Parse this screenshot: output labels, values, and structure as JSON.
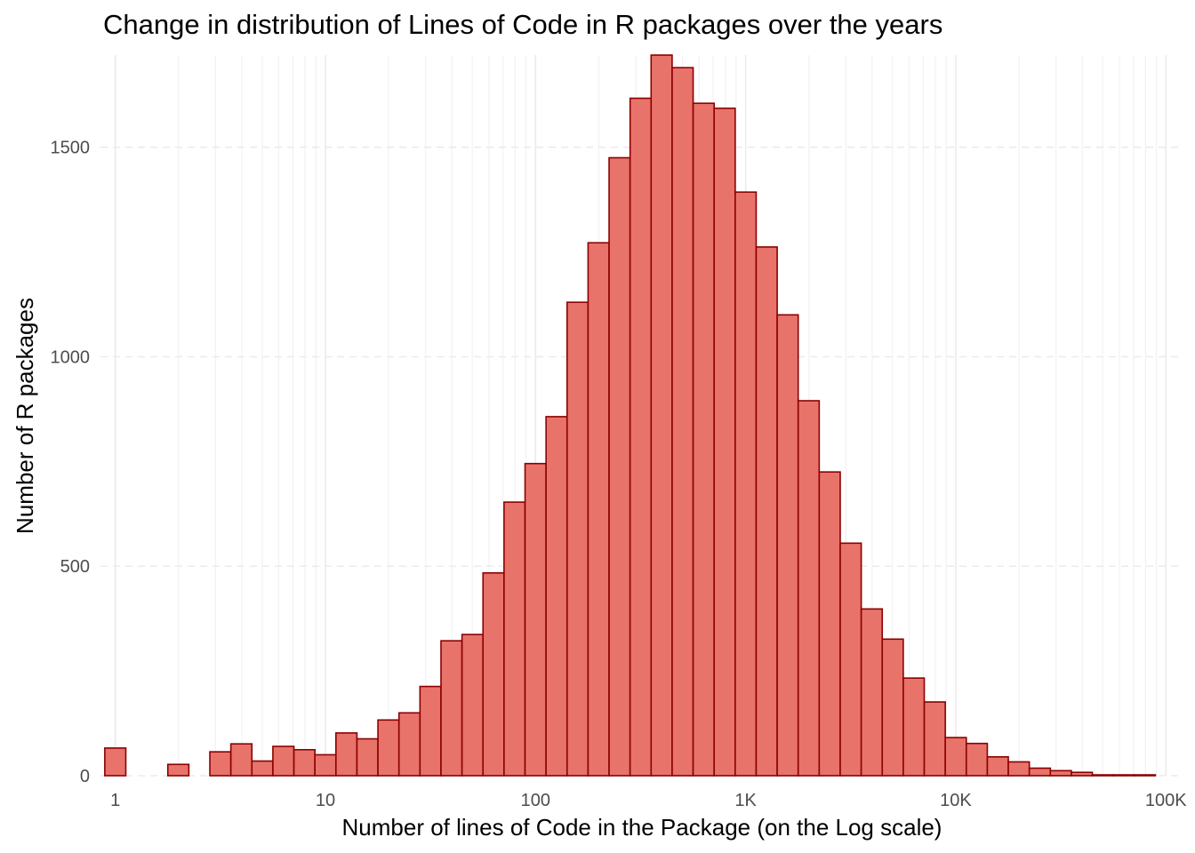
{
  "chart_data": {
    "type": "bar",
    "title": "Change in distribution of Lines of Code in R packages over the years",
    "xlabel": "Number of lines of Code in the Package (on the Log scale)",
    "ylabel": "Number of R packages",
    "x_scale": "log10",
    "xlim": [
      0.85,
      120000
    ],
    "ylim": [
      0,
      1720
    ],
    "x_ticks": [
      {
        "value": 1,
        "label": "1"
      },
      {
        "value": 10,
        "label": "10"
      },
      {
        "value": 100,
        "label": "100"
      },
      {
        "value": 1000,
        "label": "1K"
      },
      {
        "value": 10000,
        "label": "10K"
      },
      {
        "value": 100000,
        "label": "100K"
      }
    ],
    "y_ticks": [
      {
        "value": 0,
        "label": "0"
      },
      {
        "value": 500,
        "label": "500"
      },
      {
        "value": 1000,
        "label": "1000"
      },
      {
        "value": 1500,
        "label": "1500"
      }
    ],
    "bin_centers_log10": [
      0.0,
      0.1,
      0.2,
      0.3,
      0.4,
      0.5,
      0.6,
      0.7,
      0.8,
      0.9,
      1.0,
      1.1,
      1.2,
      1.3,
      1.4,
      1.5,
      1.6,
      1.7,
      1.8,
      1.9,
      2.0,
      2.1,
      2.2,
      2.3,
      2.4,
      2.5,
      2.6,
      2.7,
      2.8,
      2.9,
      3.0,
      3.1,
      3.2,
      3.3,
      3.4,
      3.5,
      3.6,
      3.7,
      3.8,
      3.9,
      4.0,
      4.1,
      4.2,
      4.3,
      4.4,
      4.5,
      4.6,
      4.7,
      4.8,
      4.9
    ],
    "bin_width_log10": 0.1,
    "values": [
      66,
      0,
      0,
      27,
      0,
      57,
      76,
      35,
      70,
      62,
      50,
      102,
      88,
      133,
      150,
      213,
      322,
      337,
      484,
      653,
      745,
      857,
      1130,
      1272,
      1475,
      1617,
      1720,
      1690,
      1605,
      1593,
      1393,
      1262,
      1100,
      895,
      725,
      555,
      398,
      326,
      233,
      176,
      91,
      77,
      45,
      33,
      18,
      12,
      8,
      2,
      2,
      2
    ],
    "colors": {
      "fill": "#e8736a",
      "stroke": "#8b0000",
      "grid_major": "#ebebeb",
      "grid_minor": "#f2f2f2"
    },
    "grid": true,
    "legend": "none"
  }
}
